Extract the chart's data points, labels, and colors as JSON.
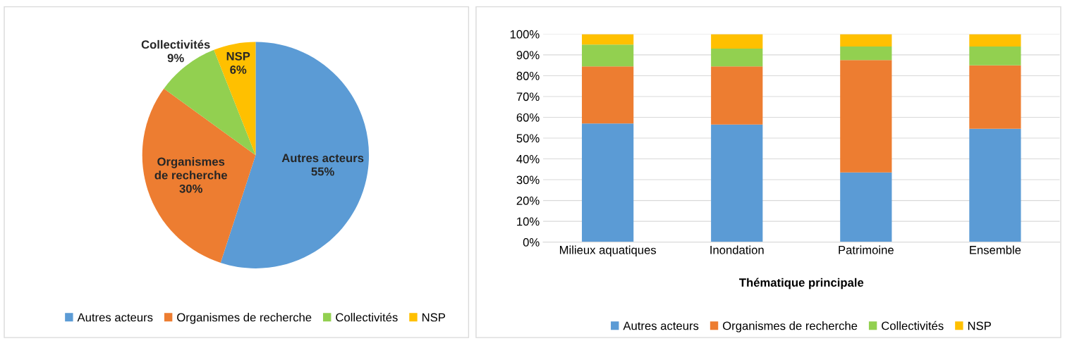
{
  "chart_data": [
    {
      "type": "pie",
      "categories": [
        "Autres acteurs",
        "Organismes de recherche",
        "Collectivités",
        "NSP"
      ],
      "values": [
        55,
        30,
        9,
        6
      ],
      "colors": [
        "#5b9bd5",
        "#ed7d31",
        "#92d050",
        "#ffc000"
      ],
      "value_labels": [
        "55%",
        "30%",
        "9%",
        "6%"
      ],
      "legend": "bottom"
    },
    {
      "type": "bar",
      "stacked": true,
      "xlabel": "Thématique principale",
      "categories": [
        "Milieux aquatiques",
        "Inondation",
        "Patrimoine",
        "Ensemble"
      ],
      "series": [
        {
          "name": "Autres acteurs",
          "color": "#5b9bd5",
          "values": [
            57,
            56.5,
            33.5,
            54.5
          ]
        },
        {
          "name": "Organismes de recherche",
          "color": "#ed7d31",
          "values": [
            27.5,
            28,
            54,
            30.5
          ]
        },
        {
          "name": "Collectivités",
          "color": "#92d050",
          "values": [
            10.5,
            8.5,
            6.5,
            9
          ]
        },
        {
          "name": "NSP",
          "color": "#ffc000",
          "values": [
            5,
            7,
            6,
            6
          ]
        }
      ],
      "ylim": [
        0,
        100
      ],
      "yticks": [
        {
          "value": 0,
          "label": "0%"
        },
        {
          "value": 10,
          "label": "10%"
        },
        {
          "value": 20,
          "label": "20%"
        },
        {
          "value": 30,
          "label": "30%"
        },
        {
          "value": 40,
          "label": "40%"
        },
        {
          "value": 50,
          "label": "50%"
        },
        {
          "value": 60,
          "label": "60%"
        },
        {
          "value": 70,
          "label": "70%"
        },
        {
          "value": 80,
          "label": "80%"
        },
        {
          "value": 90,
          "label": "90%"
        },
        {
          "value": 100,
          "label": "100%"
        }
      ],
      "grid": "y",
      "legend": "bottom"
    }
  ]
}
